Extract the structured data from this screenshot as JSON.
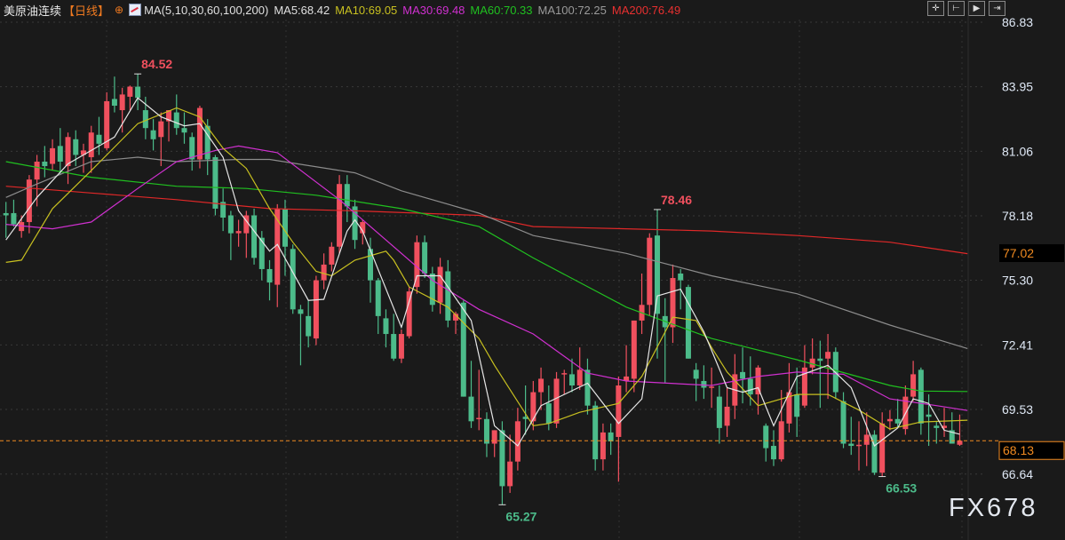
{
  "header": {
    "symbol": "美原油连续",
    "period": "【日线】",
    "globe_icon": "globe-icon",
    "ma_icon": "indicator-chart-icon",
    "ma_params": "MA(5,10,30,60,100,200)",
    "ma5": "MA5:68.42",
    "ma10": "MA10:69.05",
    "ma30": "MA30:69.48",
    "ma60": "MA60:70.33",
    "ma100": "MA100:72.25",
    "ma200": "MA200:76.49"
  },
  "toolbar": {
    "icons": [
      "crosshair-icon",
      "zoom-to-start-icon",
      "play-forward-icon",
      "exit-icon"
    ],
    "glyphs": [
      "✛",
      "⊢",
      "▶",
      "⇥"
    ]
  },
  "watermark": "FX678",
  "colors": {
    "up": "#f0505e",
    "down": "#4cbb8a",
    "ma5": "#e6e6e6",
    "ma10": "#c8c020",
    "ma30": "#d030d0",
    "ma60": "#20c020",
    "ma100": "#8c8c8c",
    "ma200": "#e02828",
    "last": "#f08a20",
    "background": "#1a1a1a"
  },
  "chart_data": {
    "type": "candlestick",
    "ylim": [
      65.27,
      86.83
    ],
    "y_ticks": [
      "86.83",
      "83.95",
      "81.06",
      "78.18",
      "75.30",
      "72.41",
      "69.53",
      "66.64"
    ],
    "grid": true,
    "last_price": "68.13",
    "tag_price": "77.02",
    "annotations": [
      {
        "index": 17,
        "text": "84.52",
        "type": "high"
      },
      {
        "index": 64,
        "text": "65.27",
        "type": "low"
      },
      {
        "index": 84,
        "text": "78.46",
        "type": "high"
      },
      {
        "index": 113,
        "text": "66.53",
        "type": "low"
      }
    ],
    "ohlc": [
      [
        78.3,
        78.8,
        77.2,
        78.2
      ],
      [
        78.3,
        78.9,
        77.7,
        77.8
      ],
      [
        77.5,
        78.2,
        77.2,
        77.9
      ],
      [
        77.9,
        80.0,
        77.4,
        79.8
      ],
      [
        79.8,
        80.9,
        78.6,
        80.6
      ],
      [
        80.6,
        81.3,
        79.9,
        80.4
      ],
      [
        80.5,
        81.6,
        80.2,
        81.2
      ],
      [
        81.3,
        82.1,
        80.0,
        80.6
      ],
      [
        80.4,
        81.9,
        79.6,
        81.7
      ],
      [
        81.6,
        82.0,
        80.4,
        80.9
      ],
      [
        80.9,
        81.4,
        80.1,
        81.1
      ],
      [
        80.8,
        82.2,
        80.1,
        81.9
      ],
      [
        81.8,
        82.6,
        80.9,
        81.4
      ],
      [
        81.2,
        83.7,
        81.1,
        83.3
      ],
      [
        83.4,
        84.4,
        82.8,
        83.1
      ],
      [
        82.9,
        83.9,
        81.9,
        83.6
      ],
      [
        83.5,
        84.0,
        82.9,
        83.95
      ],
      [
        83.95,
        84.52,
        82.9,
        83.45
      ],
      [
        82.9,
        83.5,
        81.6,
        82.1
      ],
      [
        82.0,
        82.5,
        81.1,
        81.6
      ],
      [
        81.7,
        82.8,
        80.4,
        82.4
      ],
      [
        82.4,
        82.9,
        81.5,
        82.9
      ],
      [
        82.8,
        83.6,
        81.8,
        82.1
      ],
      [
        82.1,
        82.8,
        81.4,
        81.9
      ],
      [
        81.7,
        81.9,
        80.2,
        80.7
      ],
      [
        80.7,
        83.1,
        80.3,
        83.0
      ],
      [
        82.2,
        82.5,
        80.0,
        80.7
      ],
      [
        80.8,
        80.9,
        78.2,
        78.5
      ],
      [
        78.8,
        79.4,
        77.5,
        78.1
      ],
      [
        78.2,
        78.4,
        76.2,
        77.4
      ],
      [
        77.4,
        78.0,
        76.8,
        77.5
      ],
      [
        77.4,
        78.4,
        76.3,
        78.2
      ],
      [
        78.2,
        78.5,
        76.0,
        76.3
      ],
      [
        77.2,
        77.5,
        75.3,
        75.8
      ],
      [
        75.8,
        76.2,
        74.4,
        75.2
      ],
      [
        75.1,
        78.7,
        74.1,
        78.5
      ],
      [
        78.5,
        78.9,
        75.5,
        76.8
      ],
      [
        76.7,
        76.9,
        73.8,
        74.0
      ],
      [
        74.0,
        74.2,
        71.5,
        73.8
      ],
      [
        73.7,
        74.4,
        72.3,
        72.8
      ],
      [
        72.7,
        75.5,
        72.4,
        75.3
      ],
      [
        75.3,
        76.5,
        74.9,
        76.0
      ],
      [
        76.0,
        77.0,
        75.7,
        76.8
      ],
      [
        76.8,
        80.0,
        76.5,
        79.6
      ],
      [
        79.6,
        80.0,
        77.9,
        78.6
      ],
      [
        78.6,
        78.9,
        76.7,
        77.1
      ],
      [
        77.4,
        78.0,
        76.9,
        77.9
      ],
      [
        76.7,
        77.2,
        74.3,
        75.3
      ],
      [
        75.3,
        75.4,
        72.9,
        73.7
      ],
      [
        73.6,
        74.0,
        72.3,
        72.9
      ],
      [
        72.9,
        73.8,
        71.7,
        71.8
      ],
      [
        71.8,
        73.1,
        71.6,
        72.9
      ],
      [
        72.8,
        75.0,
        72.7,
        74.8
      ],
      [
        75.0,
        77.3,
        74.7,
        77.0
      ],
      [
        77.0,
        77.3,
        75.4,
        75.6
      ],
      [
        75.6,
        75.9,
        73.9,
        74.2
      ],
      [
        74.3,
        76.3,
        73.8,
        75.9
      ],
      [
        75.7,
        76.2,
        73.2,
        73.5
      ],
      [
        73.5,
        73.9,
        72.9,
        73.8
      ],
      [
        74.3,
        74.4,
        70.1,
        70.1
      ],
      [
        70.1,
        71.7,
        68.7,
        69.0
      ],
      [
        69.1,
        71.3,
        68.6,
        69.15
      ],
      [
        69.1,
        69.4,
        67.4,
        68.0
      ],
      [
        68.0,
        68.6,
        67.4,
        68.6
      ],
      [
        68.6,
        69.0,
        65.27,
        66.1
      ],
      [
        66.1,
        68.4,
        65.8,
        67.2
      ],
      [
        67.2,
        69.6,
        66.8,
        69.0
      ],
      [
        69.2,
        70.6,
        68.4,
        69.1
      ],
      [
        69.0,
        70.8,
        68.6,
        70.3
      ],
      [
        70.3,
        71.4,
        69.5,
        70.9
      ],
      [
        69.8,
        70.6,
        68.6,
        68.9
      ],
      [
        68.9,
        71.2,
        68.7,
        70.9
      ],
      [
        71.1,
        71.3,
        70.2,
        71.15
      ],
      [
        71.1,
        71.8,
        70.3,
        70.6
      ],
      [
        70.6,
        72.3,
        70.4,
        71.3
      ],
      [
        71.3,
        71.8,
        69.3,
        69.7
      ],
      [
        69.7,
        69.9,
        66.8,
        67.3
      ],
      [
        67.3,
        68.9,
        66.8,
        68.5
      ],
      [
        68.5,
        68.9,
        67.5,
        68.1
      ],
      [
        68.3,
        71.0,
        66.3,
        70.6
      ],
      [
        70.8,
        72.4,
        70.3,
        71.0
      ],
      [
        70.9,
        73.5,
        70.3,
        73.5
      ],
      [
        73.5,
        75.6,
        72.9,
        74.2
      ],
      [
        74.2,
        77.4,
        73.7,
        77.2
      ],
      [
        77.3,
        78.46,
        71.8,
        73.8
      ],
      [
        73.7,
        74.5,
        70.7,
        73.2
      ],
      [
        73.2,
        76.0,
        72.5,
        75.4
      ],
      [
        75.6,
        75.8,
        74.0,
        75.3
      ],
      [
        75.0,
        75.1,
        71.8,
        71.8
      ],
      [
        71.3,
        71.6,
        69.9,
        70.9
      ],
      [
        70.8,
        71.5,
        70.0,
        70.5
      ],
      [
        70.5,
        71.4,
        69.6,
        70.55
      ],
      [
        70.1,
        70.6,
        68.0,
        68.7
      ],
      [
        68.8,
        70.5,
        68.3,
        69.65
      ],
      [
        69.7,
        72.0,
        69.1,
        71.1
      ],
      [
        71.2,
        72.3,
        69.8,
        70.9
      ],
      [
        70.9,
        71.9,
        69.7,
        70.2
      ],
      [
        70.2,
        71.5,
        69.3,
        71.4
      ],
      [
        68.8,
        68.9,
        67.2,
        67.8
      ],
      [
        67.9,
        68.6,
        67.0,
        67.3
      ],
      [
        67.3,
        70.4,
        67.2,
        69.0
      ],
      [
        68.9,
        71.6,
        68.5,
        70.3
      ],
      [
        70.2,
        71.4,
        68.3,
        69.2
      ],
      [
        69.7,
        72.4,
        69.6,
        71.4
      ],
      [
        71.4,
        72.7,
        71.1,
        71.8
      ],
      [
        71.8,
        72.6,
        69.6,
        71.7
      ],
      [
        71.8,
        72.9,
        70.0,
        72.1
      ],
      [
        72.1,
        72.3,
        70.0,
        70.3
      ],
      [
        69.9,
        70.3,
        67.8,
        68.0
      ],
      [
        68.0,
        69.2,
        67.5,
        67.9
      ],
      [
        67.9,
        69.0,
        66.8,
        67.95
      ],
      [
        67.95,
        69.4,
        67.0,
        68.4
      ],
      [
        68.4,
        68.6,
        66.6,
        66.7
      ],
      [
        66.7,
        69.4,
        66.53,
        68.9
      ],
      [
        69.0,
        69.5,
        68.6,
        69.1
      ],
      [
        69.1,
        70.0,
        68.7,
        68.9
      ],
      [
        68.65,
        70.6,
        68.4,
        70.1
      ],
      [
        70.1,
        71.7,
        69.9,
        71.1
      ],
      [
        71.3,
        71.4,
        68.4,
        68.9
      ],
      [
        69.3,
        70.2,
        67.9,
        69.2
      ],
      [
        68.8,
        69.0,
        68.0,
        68.7
      ],
      [
        68.7,
        69.6,
        68.3,
        68.8
      ],
      [
        68.6,
        69.4,
        68.0,
        68.0
      ],
      [
        67.95,
        69.3,
        67.9,
        68.13
      ]
    ],
    "moving_averages": [
      {
        "name": "MA200",
        "color": "#e02828",
        "points": [
          [
            0,
            79.5
          ],
          [
            11,
            79.2
          ],
          [
            22,
            78.9
          ],
          [
            34,
            78.5
          ],
          [
            45,
            78.4
          ],
          [
            61,
            78.2
          ],
          [
            68,
            77.7
          ],
          [
            80,
            77.6
          ],
          [
            91,
            77.5
          ],
          [
            102,
            77.3
          ],
          [
            114,
            77.0
          ],
          [
            124,
            76.49
          ]
        ]
      },
      {
        "name": "MA100",
        "color": "#8c8c8c",
        "points": [
          [
            0,
            79.0
          ],
          [
            4,
            79.6
          ],
          [
            11,
            80.6
          ],
          [
            17,
            80.8
          ],
          [
            22,
            80.6
          ],
          [
            30,
            80.7
          ],
          [
            34,
            80.7
          ],
          [
            45,
            80.1
          ],
          [
            51,
            79.3
          ],
          [
            61,
            78.3
          ],
          [
            68,
            77.3
          ],
          [
            80,
            76.5
          ],
          [
            91,
            75.5
          ],
          [
            102,
            74.7
          ],
          [
            114,
            73.3
          ],
          [
            124,
            72.25
          ]
        ]
      },
      {
        "name": "MA60",
        "color": "#20c020",
        "points": [
          [
            0,
            80.6
          ],
          [
            11,
            79.9
          ],
          [
            22,
            79.5
          ],
          [
            31,
            79.4
          ],
          [
            40,
            79.1
          ],
          [
            51,
            78.5
          ],
          [
            61,
            77.7
          ],
          [
            68,
            76.3
          ],
          [
            80,
            74.1
          ],
          [
            91,
            72.7
          ],
          [
            102,
            71.75
          ],
          [
            114,
            70.6
          ],
          [
            118,
            70.35
          ],
          [
            124,
            70.33
          ]
        ]
      },
      {
        "name": "MA30",
        "color": "#d030d0",
        "points": [
          [
            0,
            77.8
          ],
          [
            6,
            77.6
          ],
          [
            11,
            77.9
          ],
          [
            17,
            79.4
          ],
          [
            22,
            80.6
          ],
          [
            27,
            81.1
          ],
          [
            30,
            81.3
          ],
          [
            35,
            81.0
          ],
          [
            43,
            78.9
          ],
          [
            49,
            77.1
          ],
          [
            55,
            75.3
          ],
          [
            61,
            74.0
          ],
          [
            68,
            72.9
          ],
          [
            75,
            71.15
          ],
          [
            80,
            70.8
          ],
          [
            91,
            70.6
          ],
          [
            97,
            71.0
          ],
          [
            102,
            71.2
          ],
          [
            108,
            71.1
          ],
          [
            114,
            70.0
          ],
          [
            120,
            69.7
          ],
          [
            124,
            69.48
          ]
        ]
      },
      {
        "name": "MA10",
        "color": "#c8c020",
        "points": [
          [
            0,
            76.1
          ],
          [
            2,
            76.2
          ],
          [
            6,
            78.5
          ],
          [
            11,
            80.2
          ],
          [
            17,
            82.3
          ],
          [
            22,
            83.0
          ],
          [
            25,
            82.6
          ],
          [
            28,
            81.2
          ],
          [
            31,
            80.3
          ],
          [
            34,
            78.5
          ],
          [
            37,
            77.0
          ],
          [
            40,
            75.7
          ],
          [
            42,
            75.5
          ],
          [
            45,
            76.2
          ],
          [
            49,
            76.6
          ],
          [
            50,
            76.2
          ],
          [
            52,
            75.0
          ],
          [
            57,
            74.1
          ],
          [
            61,
            72.7
          ],
          [
            63,
            71.5
          ],
          [
            68,
            68.8
          ],
          [
            70,
            68.9
          ],
          [
            74,
            69.4
          ],
          [
            79,
            69.8
          ],
          [
            82,
            71.0
          ],
          [
            86,
            73.65
          ],
          [
            89,
            73.5
          ],
          [
            91,
            72.3
          ],
          [
            93,
            71.2
          ],
          [
            97,
            69.7
          ],
          [
            102,
            70.2
          ],
          [
            106,
            70.2
          ],
          [
            110,
            69.5
          ],
          [
            114,
            68.65
          ],
          [
            118,
            68.97
          ],
          [
            124,
            69.05
          ]
        ]
      },
      {
        "name": "MA5",
        "color": "#e6e6e6",
        "points": [
          [
            0,
            77.1
          ],
          [
            4,
            79.0
          ],
          [
            8,
            80.5
          ],
          [
            11,
            81.1
          ],
          [
            14,
            81.7
          ],
          [
            17,
            83.45
          ],
          [
            20,
            82.6
          ],
          [
            23,
            82.2
          ],
          [
            25,
            82.3
          ],
          [
            28,
            80.8
          ],
          [
            30,
            78.4
          ],
          [
            34,
            76.6
          ],
          [
            35,
            76.9
          ],
          [
            39,
            74.4
          ],
          [
            41,
            74.45
          ],
          [
            44,
            77.5
          ],
          [
            45,
            78.0
          ],
          [
            46,
            77.5
          ],
          [
            51,
            73.2
          ],
          [
            53,
            75.5
          ],
          [
            56,
            75.5
          ],
          [
            60,
            73.5
          ],
          [
            63,
            68.8
          ],
          [
            66,
            67.9
          ],
          [
            69,
            69.7
          ],
          [
            75,
            70.7
          ],
          [
            79,
            68.9
          ],
          [
            82,
            70.0
          ],
          [
            84,
            74.6
          ],
          [
            87,
            74.9
          ],
          [
            90,
            73.0
          ],
          [
            93,
            70.5
          ],
          [
            95,
            70.3
          ],
          [
            97,
            70.5
          ],
          [
            99,
            68.8
          ],
          [
            102,
            71.0
          ],
          [
            106,
            71.5
          ],
          [
            109,
            70.5
          ],
          [
            112,
            67.9
          ],
          [
            115,
            68.7
          ],
          [
            117,
            70.0
          ],
          [
            119,
            69.8
          ],
          [
            121,
            68.6
          ],
          [
            123,
            68.42
          ]
        ]
      }
    ]
  }
}
